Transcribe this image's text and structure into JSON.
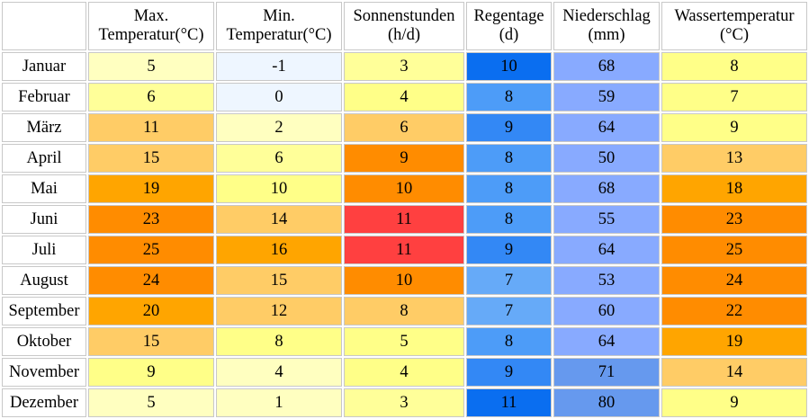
{
  "headers": [
    {
      "line1": "Max.",
      "line2": "Temperatur(°C)"
    },
    {
      "line1": "Min.",
      "line2": "Temperatur(°C)"
    },
    {
      "line1": "Sonnenstunden",
      "line2": "(h/d)"
    },
    {
      "line1": "Regentage",
      "line2": "(d)"
    },
    {
      "line1": "Niederschlag",
      "line2": "(mm)"
    },
    {
      "line1": "Wassertemperatur",
      "line2": "(°C)"
    }
  ],
  "rows": [
    {
      "month": "Januar",
      "cells": [
        {
          "v": "5",
          "c": "#ffffc0"
        },
        {
          "v": "-1",
          "c": "#eef6ff"
        },
        {
          "v": "3",
          "c": "#ffff99"
        },
        {
          "v": "10",
          "c": "#0a6ef0"
        },
        {
          "v": "68",
          "c": "#88aaff"
        },
        {
          "v": "8",
          "c": "#ffff88"
        }
      ]
    },
    {
      "month": "Februar",
      "cells": [
        {
          "v": "6",
          "c": "#ffff99"
        },
        {
          "v": "0",
          "c": "#eef6ff"
        },
        {
          "v": "4",
          "c": "#ffff88"
        },
        {
          "v": "8",
          "c": "#4d9cf8"
        },
        {
          "v": "59",
          "c": "#88aaff"
        },
        {
          "v": "7",
          "c": "#ffff88"
        }
      ]
    },
    {
      "month": "März",
      "cells": [
        {
          "v": "11",
          "c": "#ffcc66"
        },
        {
          "v": "2",
          "c": "#ffffc0"
        },
        {
          "v": "6",
          "c": "#ffcc66"
        },
        {
          "v": "9",
          "c": "#3388f5"
        },
        {
          "v": "64",
          "c": "#88aaff"
        },
        {
          "v": "9",
          "c": "#ffff88"
        }
      ]
    },
    {
      "month": "April",
      "cells": [
        {
          "v": "15",
          "c": "#ffcc66"
        },
        {
          "v": "6",
          "c": "#ffff99"
        },
        {
          "v": "9",
          "c": "#ff8c00"
        },
        {
          "v": "8",
          "c": "#4d9cf8"
        },
        {
          "v": "50",
          "c": "#88aaff"
        },
        {
          "v": "13",
          "c": "#ffcc66"
        }
      ]
    },
    {
      "month": "Mai",
      "cells": [
        {
          "v": "19",
          "c": "#ffa500"
        },
        {
          "v": "10",
          "c": "#ffff88"
        },
        {
          "v": "10",
          "c": "#ff8c00"
        },
        {
          "v": "8",
          "c": "#4d9cf8"
        },
        {
          "v": "68",
          "c": "#88aaff"
        },
        {
          "v": "18",
          "c": "#ffa500"
        }
      ]
    },
    {
      "month": "Juni",
      "cells": [
        {
          "v": "23",
          "c": "#ff8c00"
        },
        {
          "v": "14",
          "c": "#ffcc66"
        },
        {
          "v": "11",
          "c": "#ff4040"
        },
        {
          "v": "8",
          "c": "#4d9cf8"
        },
        {
          "v": "55",
          "c": "#88aaff"
        },
        {
          "v": "23",
          "c": "#ff8c00"
        }
      ]
    },
    {
      "month": "Juli",
      "cells": [
        {
          "v": "25",
          "c": "#ff8c00"
        },
        {
          "v": "16",
          "c": "#ffa500"
        },
        {
          "v": "11",
          "c": "#ff4040"
        },
        {
          "v": "9",
          "c": "#3388f5"
        },
        {
          "v": "64",
          "c": "#88aaff"
        },
        {
          "v": "25",
          "c": "#ff8c00"
        }
      ]
    },
    {
      "month": "August",
      "cells": [
        {
          "v": "24",
          "c": "#ff8c00"
        },
        {
          "v": "15",
          "c": "#ffcc66"
        },
        {
          "v": "10",
          "c": "#ff8c00"
        },
        {
          "v": "7",
          "c": "#66aaf8"
        },
        {
          "v": "53",
          "c": "#88aaff"
        },
        {
          "v": "24",
          "c": "#ff8c00"
        }
      ]
    },
    {
      "month": "September",
      "cells": [
        {
          "v": "20",
          "c": "#ffa500"
        },
        {
          "v": "12",
          "c": "#ffcc66"
        },
        {
          "v": "8",
          "c": "#ffcc66"
        },
        {
          "v": "7",
          "c": "#66aaf8"
        },
        {
          "v": "60",
          "c": "#88aaff"
        },
        {
          "v": "22",
          "c": "#ff8c00"
        }
      ]
    },
    {
      "month": "Oktober",
      "cells": [
        {
          "v": "15",
          "c": "#ffcc66"
        },
        {
          "v": "8",
          "c": "#ffff88"
        },
        {
          "v": "5",
          "c": "#ffff88"
        },
        {
          "v": "8",
          "c": "#4d9cf8"
        },
        {
          "v": "64",
          "c": "#88aaff"
        },
        {
          "v": "19",
          "c": "#ffa500"
        }
      ]
    },
    {
      "month": "November",
      "cells": [
        {
          "v": "9",
          "c": "#ffff88"
        },
        {
          "v": "4",
          "c": "#ffffc0"
        },
        {
          "v": "4",
          "c": "#ffff88"
        },
        {
          "v": "9",
          "c": "#3388f5"
        },
        {
          "v": "71",
          "c": "#6699ee"
        },
        {
          "v": "14",
          "c": "#ffcc66"
        }
      ]
    },
    {
      "month": "Dezember",
      "cells": [
        {
          "v": "5",
          "c": "#ffffc0"
        },
        {
          "v": "1",
          "c": "#ffffc0"
        },
        {
          "v": "3",
          "c": "#ffff99"
        },
        {
          "v": "11",
          "c": "#0a6ef0"
        },
        {
          "v": "80",
          "c": "#6699ee"
        },
        {
          "v": "9",
          "c": "#ffff88"
        }
      ]
    }
  ]
}
